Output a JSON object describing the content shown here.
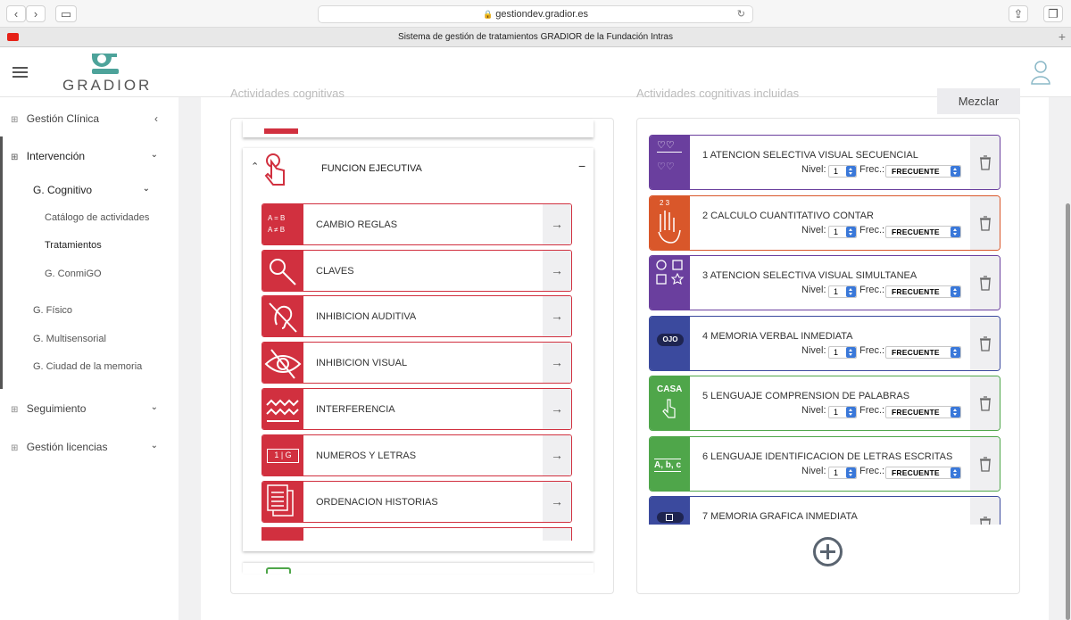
{
  "browser": {
    "url": "gestiondev.gradior.es",
    "tab_title": "Sistema de gestión de tratamientos GRADIOR de la Fundación Intras"
  },
  "header": {
    "logo_text": "GRADIOR"
  },
  "sidebar": {
    "items": [
      {
        "label": "Gestión Clínica"
      },
      {
        "label": "Intervención"
      },
      {
        "label": "G. Cognitivo"
      },
      {
        "label": "Catálogo de actividades"
      },
      {
        "label": "Tratamientos"
      },
      {
        "label": "G. ConmiGO"
      },
      {
        "label": "G. Físico"
      },
      {
        "label": "G. Multisensorial"
      },
      {
        "label": "G. Ciudad de la memoria"
      },
      {
        "label": "Seguimiento"
      },
      {
        "label": "Gestión licencias"
      }
    ]
  },
  "left_panel": {
    "heading": "Actividades cognitivas",
    "group_title": "FUNCION EJECUTIVA",
    "collapse_symbol": "−",
    "activities": [
      {
        "label": "CAMBIO REGLAS",
        "icon_text": "A = B\nA ≠ B"
      },
      {
        "label": "CLAVES"
      },
      {
        "label": "INHIBICION AUDITIVA"
      },
      {
        "label": "INHIBICION VISUAL"
      },
      {
        "label": "INTERFERENCIA"
      },
      {
        "label": "NUMEROS Y LETRAS",
        "icon_text": "1 | G"
      },
      {
        "label": "ORDENACION HISTORIAS"
      }
    ]
  },
  "right_panel": {
    "heading": "Actividades cognitivas incluidas",
    "mix_button": "Mezclar",
    "nivel_label": "Nivel:",
    "frec_label": "Frec.:",
    "rows": [
      {
        "title": "1 ATENCION SELECTIVA VISUAL SECUENCIAL",
        "nivel": "1",
        "frec": "FRECUENTE",
        "color": "#6a3f9e"
      },
      {
        "title": "2 CALCULO CUANTITATIVO CONTAR",
        "nivel": "1",
        "frec": "FRECUENTE",
        "color": "#d9572a",
        "icon_text": "2 3"
      },
      {
        "title": "3 ATENCION SELECTIVA VISUAL SIMULTANEA",
        "nivel": "1",
        "frec": "FRECUENTE",
        "color": "#6a3f9e"
      },
      {
        "title": "4 MEMORIA VERBAL INMEDIATA",
        "nivel": "1",
        "frec": "FRECUENTE",
        "color": "#3b4a9e",
        "icon_text": "OJO"
      },
      {
        "title": "5 LENGUAJE COMPRENSION DE PALABRAS",
        "nivel": "1",
        "frec": "FRECUENTE",
        "color": "#4fa64a",
        "icon_text": "CASA"
      },
      {
        "title": "6 LENGUAJE IDENTIFICACION DE LETRAS ESCRITAS",
        "nivel": "1",
        "frec": "FRECUENTE",
        "color": "#4fa64a",
        "icon_text": "A, b, c"
      },
      {
        "title": "7 MEMORIA GRAFICA INMEDIATA",
        "color": "#3b4a9e"
      }
    ]
  }
}
